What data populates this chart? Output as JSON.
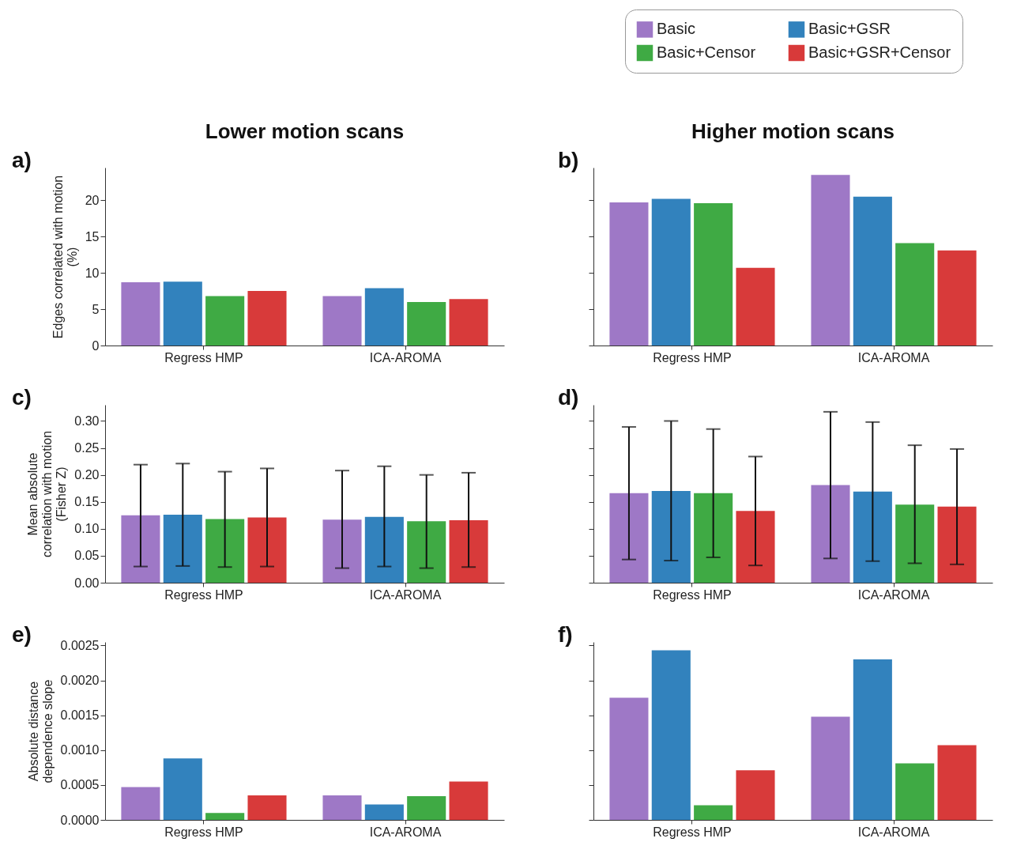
{
  "chart_data": [
    {
      "type": "bar",
      "title": "Lower motion scans",
      "ylabel": "Edges correlated with motion\n(%)",
      "annotations": [
        "a)"
      ],
      "categories": [
        "Regress HMP",
        "ICA-AROMA"
      ],
      "series": [
        {
          "color": "#9e78c6",
          "values": [
            8.7,
            6.8
          ]
        },
        {
          "color": "#3282bd",
          "values": [
            8.8,
            7.9
          ]
        },
        {
          "color": "#3faa44",
          "values": [
            6.8,
            6.0
          ]
        },
        {
          "color": "#d83a3a",
          "values": [
            7.5,
            6.4
          ]
        }
      ],
      "ylim": [
        0,
        24.5
      ],
      "yticks": [
        0,
        5,
        10,
        15,
        20
      ]
    },
    {
      "type": "bar",
      "title": "Higher motion scans",
      "annotations": [
        "b)"
      ],
      "categories": [
        "Regress HMP",
        "ICA-AROMA"
      ],
      "legend": "top right",
      "series": [
        {
          "name": "Basic",
          "color": "#9e78c6",
          "values": [
            19.7,
            23.5
          ]
        },
        {
          "name": "Basic+GSR",
          "color": "#3282bd",
          "values": [
            20.2,
            20.5
          ]
        },
        {
          "name": "Basic+Censor",
          "color": "#3faa44",
          "values": [
            19.6,
            14.1
          ]
        },
        {
          "name": "Basic+GSR+Censor",
          "color": "#d83a3a",
          "values": [
            10.7,
            13.1
          ]
        }
      ],
      "ylim": [
        0,
        24.5
      ],
      "yticks": [
        0,
        5,
        10,
        15,
        20
      ],
      "tick_labels": "x"
    },
    {
      "type": "bar",
      "ylabel": "Mean absolute\ncorrelation with motion\n(Fisher Z)",
      "annotations": [
        "c)"
      ],
      "categories": [
        "Regress HMP",
        "ICA-AROMA"
      ],
      "series": [
        {
          "color": "#9e78c6",
          "values": [
            0.125,
            0.117
          ],
          "errors": [
            [
              0.03,
              0.219
            ],
            [
              0.027,
              0.208
            ]
          ]
        },
        {
          "color": "#3282bd",
          "values": [
            0.126,
            0.122
          ],
          "errors": [
            [
              0.031,
              0.221
            ],
            [
              0.03,
              0.216
            ]
          ]
        },
        {
          "color": "#3faa44",
          "values": [
            0.118,
            0.114
          ],
          "errors": [
            [
              0.029,
              0.206
            ],
            [
              0.027,
              0.2
            ]
          ]
        },
        {
          "color": "#d83a3a",
          "values": [
            0.121,
            0.116
          ],
          "errors": [
            [
              0.03,
              0.212
            ],
            [
              0.029,
              0.204
            ]
          ]
        }
      ],
      "ylim": [
        0,
        0.33
      ],
      "yticks": [
        {
          "value": 0,
          "label": "0.00"
        },
        0.05,
        {
          "value": 0.1,
          "label": "0.10"
        },
        0.15,
        {
          "value": 0.2,
          "label": "0.20"
        },
        0.25,
        {
          "value": 0.3,
          "label": "0.30"
        }
      ]
    },
    {
      "type": "bar",
      "annotations": [
        "d)"
      ],
      "categories": [
        "Regress HMP",
        "ICA-AROMA"
      ],
      "series": [
        {
          "color": "#9e78c6",
          "values": [
            0.166,
            0.181
          ],
          "errors": [
            [
              0.043,
              0.289
            ],
            [
              0.045,
              0.317
            ]
          ]
        },
        {
          "color": "#3282bd",
          "values": [
            0.17,
            0.169
          ],
          "errors": [
            [
              0.041,
              0.3
            ],
            [
              0.04,
              0.298
            ]
          ]
        },
        {
          "color": "#3faa44",
          "values": [
            0.166,
            0.145
          ],
          "errors": [
            [
              0.047,
              0.285
            ],
            [
              0.036,
              0.255
            ]
          ]
        },
        {
          "color": "#d83a3a",
          "values": [
            0.133,
            0.141
          ],
          "errors": [
            [
              0.032,
              0.234
            ],
            [
              0.034,
              0.248
            ]
          ]
        }
      ],
      "ylim": [
        0,
        0.33
      ],
      "yticks": [
        0,
        0.05,
        0.1,
        0.15,
        0.2,
        0.25,
        0.3
      ],
      "tick_labels": "x"
    },
    {
      "type": "bar",
      "ylabel": "Absolute distance\ndependence slope",
      "annotations": [
        "e)"
      ],
      "categories": [
        "Regress HMP",
        "ICA-AROMA"
      ],
      "series": [
        {
          "color": "#9e78c6",
          "values": [
            0.00047,
            0.00035
          ]
        },
        {
          "color": "#3282bd",
          "values": [
            0.00088,
            0.00022
          ]
        },
        {
          "color": "#3faa44",
          "values": [
            0.0001,
            0.00034
          ]
        },
        {
          "color": "#d83a3a",
          "values": [
            0.00035,
            0.00055
          ]
        }
      ],
      "ylim": [
        0,
        0.00255
      ],
      "yticks": [
        {
          "value": 0,
          "label": "0.0000"
        },
        0.0005,
        {
          "value": 0.001,
          "label": "0.0010"
        },
        0.0015,
        {
          "value": 0.002,
          "label": "0.0020"
        },
        0.0025
      ]
    },
    {
      "type": "bar",
      "annotations": [
        "f)"
      ],
      "categories": [
        "Regress HMP",
        "ICA-AROMA"
      ],
      "series": [
        {
          "color": "#9e78c6",
          "values": [
            0.00175,
            0.00148
          ]
        },
        {
          "color": "#3282bd",
          "values": [
            0.00243,
            0.0023
          ]
        },
        {
          "color": "#3faa44",
          "values": [
            0.00021,
            0.00081
          ]
        },
        {
          "color": "#d83a3a",
          "values": [
            0.00071,
            0.00107
          ]
        }
      ],
      "ylim": [
        0,
        0.00255
      ],
      "yticks": [
        0,
        0.0005,
        0.001,
        0.0015,
        0.002,
        0.0025
      ],
      "tick_labels": "x"
    }
  ]
}
